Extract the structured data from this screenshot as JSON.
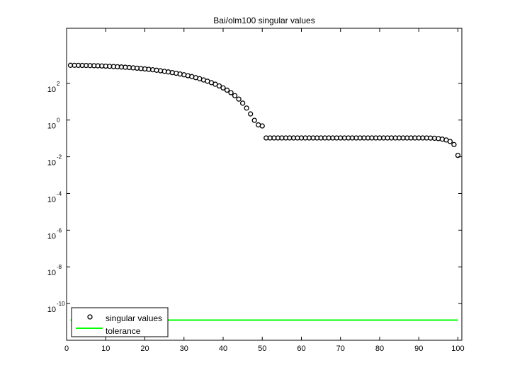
{
  "chart_data": {
    "type": "scatter",
    "title": "Bai/olm100 singular values",
    "xlabel": "",
    "ylabel": "",
    "xlim": [
      0,
      101
    ],
    "ylim": [
      1e-12,
      100000.0
    ],
    "yscale": "log",
    "grid": false,
    "legend_position": "bottom-left",
    "x_ticks": [
      0,
      10,
      20,
      30,
      40,
      50,
      60,
      70,
      80,
      90,
      100
    ],
    "y_ticks": [
      {
        "base": "10",
        "exp": "2",
        "value": 100
      },
      {
        "base": "10",
        "exp": "0",
        "value": 1
      },
      {
        "base": "10",
        "exp": "-2",
        "value": 0.01
      },
      {
        "base": "10",
        "exp": "-4",
        "value": 0.0001
      },
      {
        "base": "10",
        "exp": "-6",
        "value": 1e-06
      },
      {
        "base": "10",
        "exp": "-8",
        "value": 1e-08
      },
      {
        "base": "10",
        "exp": "-10",
        "value": 1e-10
      }
    ],
    "series": [
      {
        "name": "singular values",
        "marker": "circle-open",
        "color": "#000000",
        "x": [
          1,
          2,
          3,
          4,
          5,
          6,
          7,
          8,
          9,
          10,
          11,
          12,
          13,
          14,
          15,
          16,
          17,
          18,
          19,
          20,
          21,
          22,
          23,
          24,
          25,
          26,
          27,
          28,
          29,
          30,
          31,
          32,
          33,
          34,
          35,
          36,
          37,
          38,
          39,
          40,
          41,
          42,
          43,
          44,
          45,
          46,
          47,
          48,
          49,
          50,
          51,
          52,
          53,
          54,
          55,
          56,
          57,
          58,
          59,
          60,
          61,
          62,
          63,
          64,
          65,
          66,
          67,
          68,
          69,
          70,
          71,
          72,
          73,
          74,
          75,
          76,
          77,
          78,
          79,
          80,
          81,
          82,
          83,
          84,
          85,
          86,
          87,
          88,
          89,
          90,
          91,
          92,
          93,
          94,
          95,
          96,
          97,
          98,
          99,
          100
        ],
        "values": [
          962.8,
          959.7,
          954.6,
          947.5,
          938.5,
          927.5,
          914.7,
          900.2,
          883.8,
          865.8,
          846.3,
          825.3,
          802.7,
          778.8,
          753.7,
          727.4,
          699.8,
          671.1,
          641.6,
          611.2,
          580.1,
          548.5,
          516.2,
          483.7,
          451.1,
          418.6,
          386.0,
          353.8,
          322.3,
          291.5,
          261.4,
          232.4,
          204.7,
          178.4,
          153.5,
          130.4,
          109.1,
          89.6,
          72.1,
          56.4,
          42.6,
          31.1,
          21.3,
          13.8,
          8.32,
          4.49,
          2.15,
          0.964,
          0.544,
          0.478,
          0.106,
          0.106,
          0.106,
          0.106,
          0.106,
          0.106,
          0.106,
          0.106,
          0.106,
          0.106,
          0.106,
          0.106,
          0.106,
          0.106,
          0.106,
          0.106,
          0.106,
          0.106,
          0.106,
          0.106,
          0.106,
          0.106,
          0.106,
          0.106,
          0.106,
          0.106,
          0.106,
          0.106,
          0.106,
          0.106,
          0.106,
          0.106,
          0.106,
          0.106,
          0.106,
          0.106,
          0.106,
          0.106,
          0.106,
          0.106,
          0.106,
          0.106,
          0.104,
          0.102,
          0.098,
          0.091,
          0.082,
          0.068,
          0.046,
          0.0119
        ]
      },
      {
        "name": "tolerance",
        "marker": "line",
        "color": "#00ff00",
        "x": [
          1,
          100
        ],
        "values": [
          1.26e-11,
          1.26e-11
        ]
      }
    ]
  }
}
